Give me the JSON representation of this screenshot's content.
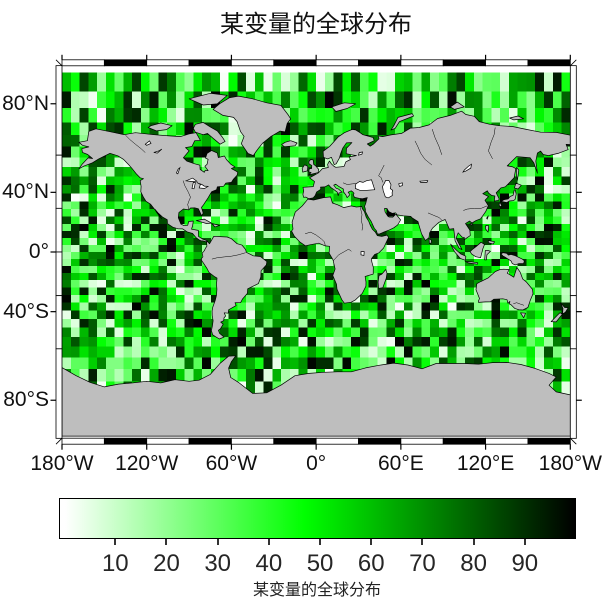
{
  "title": "某变量的全球分布",
  "map": {
    "projection": "Miller",
    "land_color": "#bebebe",
    "water_color": "#ffffff",
    "coastline_color": "#000000",
    "lon_ticks": [
      {
        "label": "180°W",
        "lon": -180
      },
      {
        "label": "120°W",
        "lon": -120
      },
      {
        "label": "60°W",
        "lon": -60
      },
      {
        "label": "0°",
        "lon": 0
      },
      {
        "label": "60°E",
        "lon": 60
      },
      {
        "label": "120°E",
        "lon": 120
      },
      {
        "label": "180°W",
        "lon": 180
      }
    ],
    "lat_ticks": [
      {
        "label": "80°N",
        "lat": 80
      },
      {
        "label": "40°N",
        "lat": 40
      },
      {
        "label": "0°",
        "lat": 0
      },
      {
        "label": "40°S",
        "lat": -40
      },
      {
        "label": "80°S",
        "lat": -80
      }
    ]
  },
  "chart_data": {
    "type": "heatmap",
    "title": "某变量的全球分布",
    "projection": "Miller",
    "lon_range": [
      -180,
      180
    ],
    "lat_range": [
      -88.5,
      88.5
    ],
    "grid_cols": 58,
    "grid_rows": 36,
    "value_range": [
      1,
      100
    ],
    "field": "uniform random scalar field over the globe, land drawn on top",
    "random_seed": 42,
    "colormap_stops": [
      {
        "value": 0,
        "color": "#ffffff"
      },
      {
        "value": 47,
        "color": "#00ff00"
      },
      {
        "value": 100,
        "color": "#000000"
      }
    ],
    "colorbar": {
      "label": "某变量的全球分布",
      "tick_values": [
        10,
        20,
        30,
        40,
        50,
        60,
        70,
        80,
        90
      ],
      "vmin": -1,
      "vmax": 100
    }
  }
}
